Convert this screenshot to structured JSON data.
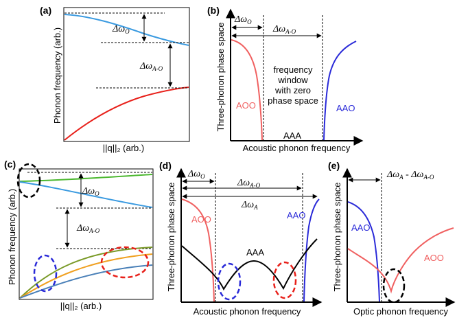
{
  "panels": {
    "a": {
      "label": "(a)",
      "xlabel": "||q||₂ (arb.)",
      "ylabel": "Phonon frequency (arb.)",
      "gap_small": "Δω",
      "gap_small_sub": "O",
      "gap_large": "Δω",
      "gap_large_sub": "A-O"
    },
    "b": {
      "label": "(b)",
      "xlabel": "Acoustic phonon frequency",
      "ylabel": "Three-phonon phase space",
      "gap_small": "Δω",
      "gap_small_sub": "O",
      "gap_large": "Δω",
      "gap_large_sub": "A-O",
      "window_text": [
        "frequency",
        "window",
        "with zero",
        "phase space"
      ],
      "curve_left": "AOO",
      "curve_right": "AAO",
      "curve_bottom": "AAA"
    },
    "c": {
      "label": "(c)",
      "xlabel": "||q||₂ (arb.)",
      "ylabel": "Phonon frequency (arb.)",
      "gap_small": "Δω",
      "gap_small_sub": "O",
      "gap_large": "Δω",
      "gap_large_sub": "A-O"
    },
    "d": {
      "label": "(d)",
      "xlabel": "Acoustic phonon frequency",
      "ylabel": "Three-phonon phase space",
      "gap_small": "Δω",
      "gap_small_sub": "O",
      "gap_mid": "Δω",
      "gap_mid_sub": "A-O",
      "gap_large": "Δω",
      "gap_large_sub": "A",
      "curve_left": "AOO",
      "curve_right": "AAO",
      "curve_mid": "AAA"
    },
    "e": {
      "label": "(e)",
      "xlabel": "Optic phonon frequency",
      "ylabel": "Three-phonon phase space",
      "gap": "Δω",
      "gap_sub1": "A",
      "gap_sep": " - Δω",
      "gap_sub2": "A-O",
      "curve_left": "AAO",
      "curve_right": "AOO"
    }
  },
  "colors": {
    "optical": "#3a9ae0",
    "acoustic_a": "#e8201a",
    "aoo": "#f06060",
    "aao": "#2a2ad8",
    "aaa": "#000000",
    "green": "#4cb830",
    "olive": "#7a9a28",
    "orange": "#f0a020",
    "steel": "#4a80b8"
  }
}
